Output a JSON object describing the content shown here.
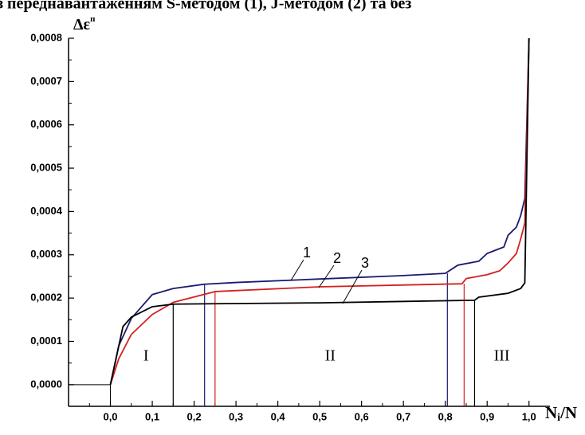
{
  "chart_data": {
    "type": "line",
    "title": "з переднавантаженням S-методом (1), J-методом (2) та без",
    "ylabel": "Δε",
    "ylabel_sup": "п",
    "xlabel": [
      "N",
      "i",
      "/N"
    ],
    "xlim": [
      -0.1,
      1.05
    ],
    "ylim": [
      -5e-05,
      0.0008
    ],
    "xticks": [
      {
        "value": 0.0,
        "label": "0,0"
      },
      {
        "value": 0.1,
        "label": "0,1"
      },
      {
        "value": 0.2,
        "label": "0,2"
      },
      {
        "value": 0.3,
        "label": "0,3"
      },
      {
        "value": 0.4,
        "label": "0,4"
      },
      {
        "value": 0.5,
        "label": "0,5"
      },
      {
        "value": 0.6,
        "label": "0,6"
      },
      {
        "value": 0.7,
        "label": "0,7"
      },
      {
        "value": 0.8,
        "label": "0,8"
      },
      {
        "value": 0.9,
        "label": "0,9"
      },
      {
        "value": 1.0,
        "label": "1,0"
      }
    ],
    "yticks": [
      {
        "value": 0.0,
        "label": "0,0000"
      },
      {
        "value": 0.0001,
        "label": "0,0001"
      },
      {
        "value": 0.0002,
        "label": "0,0002"
      },
      {
        "value": 0.0003,
        "label": "0,0003"
      },
      {
        "value": 0.0004,
        "label": "0,0004"
      },
      {
        "value": 0.0005,
        "label": "0,0005"
      },
      {
        "value": 0.0006,
        "label": "0,0006"
      },
      {
        "value": 0.0007,
        "label": "0,0007"
      },
      {
        "value": 0.0008,
        "label": "0,0008"
      }
    ],
    "series": [
      {
        "name": "1",
        "color": "#1a1a70",
        "x": [
          0,
          0.02,
          0.05,
          0.1,
          0.15,
          0.225,
          0.3,
          0.5,
          0.7,
          0.8,
          0.83,
          0.88,
          0.9,
          0.94,
          0.95,
          0.97,
          0.98,
          0.99,
          1.0
        ],
        "values": [
          0,
          9e-05,
          0.000153,
          0.000208,
          0.000222,
          0.000232,
          0.000236,
          0.000244,
          0.000252,
          0.000257,
          0.000276,
          0.000285,
          0.000303,
          0.000318,
          0.000345,
          0.000364,
          0.00039,
          0.00043,
          0.0008
        ]
      },
      {
        "name": "2",
        "color": "#d42020",
        "x": [
          0,
          0.02,
          0.05,
          0.1,
          0.15,
          0.25,
          0.5,
          0.84,
          0.85,
          0.9,
          0.93,
          0.95,
          0.97,
          0.98,
          0.99,
          1.0
        ],
        "values": [
          0,
          6e-05,
          0.000116,
          0.000162,
          0.00019,
          0.000215,
          0.000226,
          0.000233,
          0.000245,
          0.000254,
          0.000263,
          0.000281,
          0.000303,
          0.000336,
          0.000373,
          0.0008
        ]
      },
      {
        "name": "3",
        "color": "#000000",
        "x": [
          0,
          0.03,
          0.05,
          0.1,
          0.15,
          0.5,
          0.87,
          0.88,
          0.95,
          0.98,
          0.99,
          1.0
        ],
        "values": [
          0,
          0.000134,
          0.000156,
          0.00018,
          0.000186,
          0.000189,
          0.000195,
          0.000202,
          0.000211,
          0.000222,
          0.000235,
          0.0008
        ]
      }
    ],
    "boundaries": [
      {
        "x": 0.15,
        "y": 0.000186,
        "color": "#000000"
      },
      {
        "x": 0.225,
        "y": 0.000232,
        "color": "#1a1a70"
      },
      {
        "x": 0.25,
        "y": 0.000215,
        "color": "#d42020"
      },
      {
        "x": 0.805,
        "y": 0.000257,
        "color": "#1a1a70"
      },
      {
        "x": 0.845,
        "y": 0.000233,
        "color": "#d42020"
      },
      {
        "x": 0.87,
        "y": 0.000195,
        "color": "#000000"
      }
    ],
    "regions": [
      {
        "label": "I",
        "x": 0.085
      },
      {
        "label": "II",
        "x": 0.525
      },
      {
        "label": "III",
        "x": 0.935
      }
    ]
  }
}
